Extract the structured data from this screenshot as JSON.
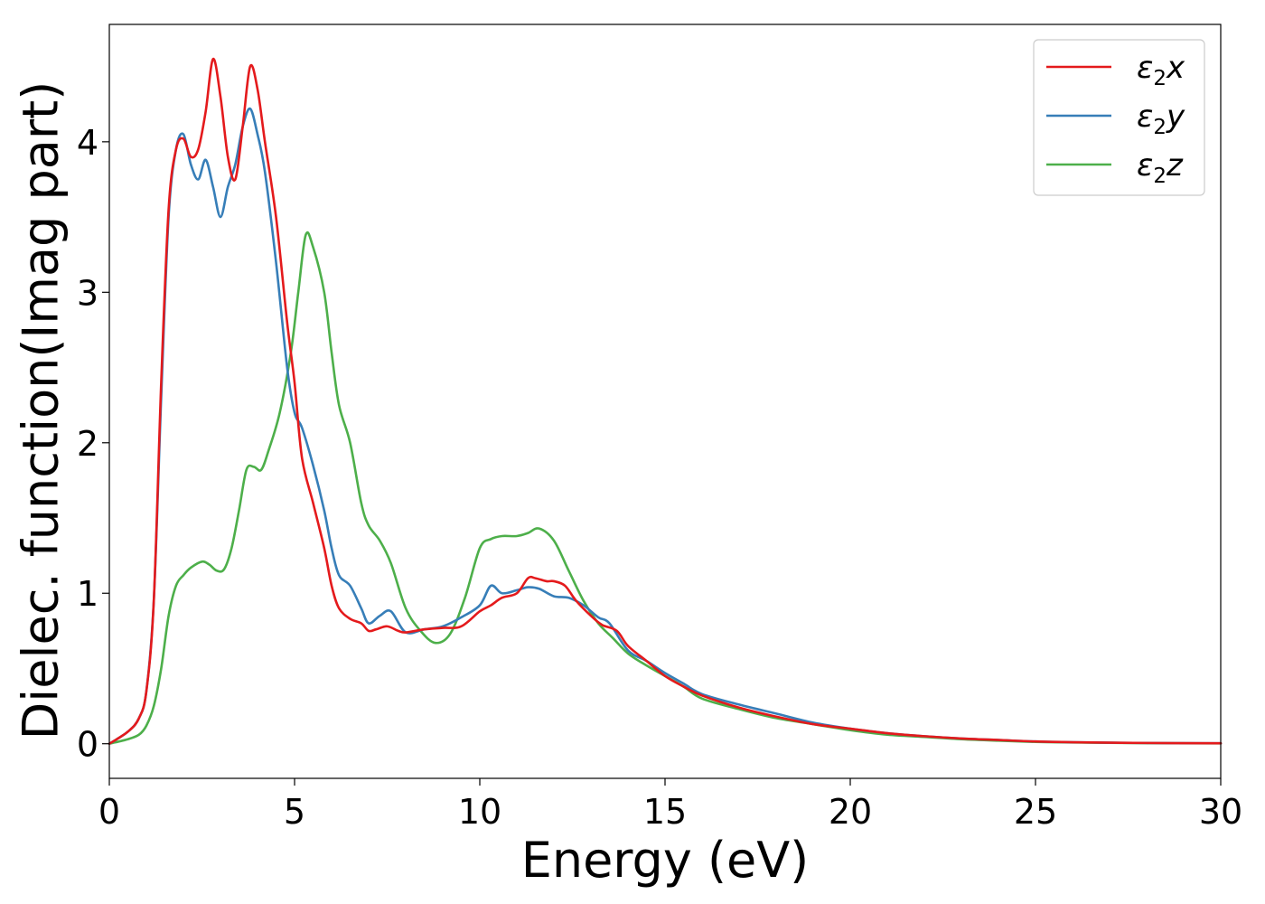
{
  "chart_data": {
    "type": "line",
    "xlabel": "Energy (eV)",
    "ylabel": "Dielec. function(Imag part)",
    "xlim": [
      0,
      30
    ],
    "ylim": [
      -0.23,
      4.78
    ],
    "xticks": [
      0,
      5,
      10,
      15,
      20,
      25,
      30
    ],
    "yticks": [
      0,
      1,
      2,
      3,
      4
    ],
    "grid": false,
    "legend_position": "top-right",
    "series": [
      {
        "name": "ε2x",
        "legend": {
          "base": "ε",
          "sub": "2",
          "suffix": "x"
        },
        "color": "#e41a1c",
        "x": [
          0,
          0.5,
          0.8,
          1.0,
          1.2,
          1.4,
          1.6,
          1.8,
          2.0,
          2.2,
          2.4,
          2.6,
          2.8,
          3.0,
          3.2,
          3.4,
          3.6,
          3.8,
          4.0,
          4.2,
          4.5,
          4.8,
          5.0,
          5.2,
          5.5,
          5.8,
          6.0,
          6.2,
          6.5,
          6.8,
          7.0,
          7.2,
          7.5,
          7.8,
          8.0,
          8.5,
          9.0,
          9.5,
          10.0,
          10.3,
          10.6,
          11.0,
          11.3,
          11.5,
          11.8,
          12.0,
          12.3,
          12.6,
          13.0,
          13.3,
          13.7,
          14.0,
          14.5,
          15.0,
          15.5,
          16.0,
          17.0,
          18.0,
          19.0,
          20.0,
          21.0,
          22.0,
          23.0,
          24.0,
          25.0,
          26.0,
          28.0,
          30.0
        ],
        "y": [
          0.0,
          0.08,
          0.17,
          0.35,
          0.95,
          2.4,
          3.55,
          3.95,
          4.02,
          3.9,
          3.95,
          4.2,
          4.55,
          4.3,
          3.9,
          3.75,
          4.1,
          4.5,
          4.35,
          4.0,
          3.5,
          2.8,
          2.4,
          1.9,
          1.6,
          1.3,
          1.05,
          0.9,
          0.83,
          0.8,
          0.75,
          0.76,
          0.78,
          0.75,
          0.74,
          0.76,
          0.77,
          0.78,
          0.88,
          0.92,
          0.97,
          1.0,
          1.1,
          1.1,
          1.08,
          1.08,
          1.05,
          0.95,
          0.85,
          0.79,
          0.75,
          0.65,
          0.55,
          0.45,
          0.38,
          0.32,
          0.24,
          0.18,
          0.13,
          0.1,
          0.07,
          0.05,
          0.035,
          0.025,
          0.015,
          0.01,
          0.005,
          0.003
        ]
      },
      {
        "name": "ε2y",
        "legend": {
          "base": "ε",
          "sub": "2",
          "suffix": "y"
        },
        "color": "#377eb8",
        "x": [
          0,
          0.5,
          0.8,
          1.0,
          1.2,
          1.4,
          1.6,
          1.8,
          2.0,
          2.2,
          2.4,
          2.6,
          2.8,
          3.0,
          3.2,
          3.4,
          3.6,
          3.8,
          4.0,
          4.2,
          4.5,
          4.8,
          5.0,
          5.2,
          5.5,
          5.8,
          6.0,
          6.2,
          6.5,
          6.8,
          7.0,
          7.3,
          7.6,
          8.0,
          8.5,
          9.0,
          9.5,
          10.0,
          10.3,
          10.6,
          11.0,
          11.3,
          11.6,
          12.0,
          12.4,
          12.8,
          13.2,
          13.5,
          14.0,
          14.5,
          15.0,
          15.5,
          16.0,
          17.0,
          18.0,
          19.0,
          20.0,
          21.0,
          22.0,
          23.0,
          24.0,
          25.0,
          26.0,
          28.0,
          30.0
        ],
        "y": [
          0.0,
          0.08,
          0.17,
          0.35,
          0.95,
          2.3,
          3.5,
          3.95,
          4.05,
          3.85,
          3.75,
          3.88,
          3.7,
          3.5,
          3.7,
          3.85,
          4.1,
          4.22,
          4.05,
          3.8,
          3.2,
          2.5,
          2.2,
          2.1,
          1.85,
          1.55,
          1.3,
          1.12,
          1.05,
          0.9,
          0.8,
          0.85,
          0.88,
          0.74,
          0.76,
          0.78,
          0.84,
          0.92,
          1.05,
          1.0,
          1.02,
          1.04,
          1.03,
          0.98,
          0.97,
          0.92,
          0.84,
          0.8,
          0.62,
          0.55,
          0.47,
          0.4,
          0.33,
          0.26,
          0.2,
          0.14,
          0.1,
          0.07,
          0.05,
          0.035,
          0.025,
          0.015,
          0.01,
          0.005,
          0.003
        ]
      },
      {
        "name": "ε2z",
        "legend": {
          "base": "ε",
          "sub": "2",
          "suffix": "z"
        },
        "color": "#4daf4a",
        "x": [
          0,
          0.5,
          0.8,
          1.0,
          1.2,
          1.4,
          1.6,
          1.8,
          2.0,
          2.2,
          2.5,
          2.7,
          2.9,
          3.1,
          3.3,
          3.5,
          3.7,
          3.9,
          4.1,
          4.3,
          4.6,
          4.9,
          5.1,
          5.3,
          5.5,
          5.8,
          6.0,
          6.2,
          6.5,
          6.8,
          7.0,
          7.3,
          7.6,
          8.0,
          8.4,
          8.8,
          9.2,
          9.6,
          10.0,
          10.3,
          10.6,
          11.0,
          11.3,
          11.6,
          12.0,
          12.4,
          12.8,
          13.2,
          13.6,
          14.0,
          14.5,
          15.0,
          15.5,
          16.0,
          17.0,
          18.0,
          19.0,
          20.0,
          21.0,
          22.0,
          23.0,
          24.0,
          25.0,
          26.0,
          28.0,
          30.0
        ],
        "y": [
          0.0,
          0.03,
          0.06,
          0.12,
          0.25,
          0.5,
          0.85,
          1.05,
          1.12,
          1.17,
          1.21,
          1.19,
          1.15,
          1.16,
          1.3,
          1.55,
          1.82,
          1.84,
          1.82,
          1.95,
          2.2,
          2.6,
          3.0,
          3.38,
          3.3,
          3.0,
          2.6,
          2.25,
          2.0,
          1.6,
          1.45,
          1.35,
          1.2,
          0.9,
          0.75,
          0.67,
          0.73,
          0.97,
          1.3,
          1.36,
          1.38,
          1.38,
          1.4,
          1.43,
          1.35,
          1.15,
          0.95,
          0.8,
          0.7,
          0.6,
          0.52,
          0.45,
          0.38,
          0.3,
          0.23,
          0.17,
          0.13,
          0.09,
          0.06,
          0.045,
          0.03,
          0.02,
          0.012,
          0.008,
          0.004,
          0.002
        ]
      }
    ]
  }
}
